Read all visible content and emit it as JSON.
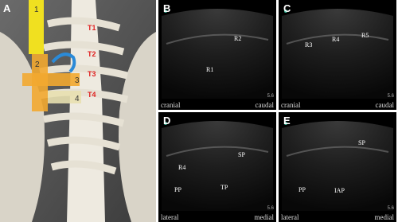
{
  "panels": [
    {
      "label": "A",
      "vertebrae": [
        "T1",
        "T2",
        "T3",
        "T4"
      ],
      "markers": [
        "1",
        "2",
        "3",
        "4"
      ]
    },
    {
      "label": "B",
      "structures": [
        "R1",
        "R2"
      ],
      "left": "cranial",
      "right": "caudal",
      "depth": 5.6
    },
    {
      "label": "C",
      "structures": [
        "R3",
        "R4",
        "R5"
      ],
      "left": "cranial",
      "right": "caudal",
      "depth": 5.6
    },
    {
      "label": "D",
      "structures": [
        "R4",
        "PP",
        "TP",
        "SP"
      ],
      "left": "lateral",
      "right": "medial",
      "depth": 5.6
    },
    {
      "label": "E",
      "structures": [
        "PP",
        "IAP",
        "SP"
      ],
      "left": "lateral",
      "right": "medial",
      "depth": 5.6
    }
  ]
}
